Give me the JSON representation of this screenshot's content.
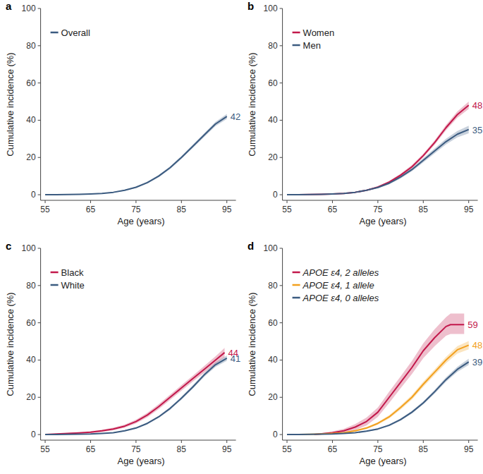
{
  "chart_data": [
    {
      "type": "line",
      "title": "a",
      "xlabel": "Age (years)",
      "ylabel": "Cumulative incidence (%)",
      "xlim": [
        54,
        97
      ],
      "ylim": [
        -3,
        100
      ],
      "xticks": [
        55,
        65,
        75,
        85,
        95
      ],
      "yticks": [
        0,
        20,
        40,
        60,
        80,
        100
      ],
      "legend": "top-left",
      "series": [
        {
          "name": "Overall",
          "color": "#3b5b80",
          "x": [
            55,
            57.5,
            60,
            62.5,
            65,
            67.5,
            70,
            72.5,
            75,
            77.5,
            80,
            82.5,
            85,
            87.5,
            90,
            92.5,
            95
          ],
          "values": [
            0,
            0,
            0.1,
            0.2,
            0.4,
            0.7,
            1.3,
            2.4,
            4,
            6.5,
            10,
            14.5,
            20,
            26,
            32,
            38,
            42
          ],
          "lower": [
            0,
            0,
            0.1,
            0.1,
            0.3,
            0.6,
            1.1,
            2.1,
            3.6,
            6,
            9.4,
            13.8,
            19.2,
            25.1,
            31,
            36.9,
            40.6
          ],
          "upper": [
            0,
            0.1,
            0.2,
            0.3,
            0.5,
            0.8,
            1.5,
            2.7,
            4.4,
            7,
            10.6,
            15.2,
            20.8,
            26.9,
            33,
            39.1,
            43.4
          ],
          "end_value": 42
        }
      ]
    },
    {
      "type": "line",
      "title": "b",
      "xlabel": "Age (years)",
      "ylabel": "Cumulative incidence (%)",
      "xlim": [
        54,
        97
      ],
      "ylim": [
        -3,
        100
      ],
      "xticks": [
        55,
        65,
        75,
        85,
        95
      ],
      "yticks": [
        0,
        20,
        40,
        60,
        80,
        100
      ],
      "legend": "top-left",
      "series": [
        {
          "name": "Women",
          "color": "#c2184b",
          "x": [
            55,
            57.5,
            60,
            62.5,
            65,
            67.5,
            70,
            72.5,
            75,
            77.5,
            80,
            82.5,
            85,
            87.5,
            90,
            92.5,
            95
          ],
          "values": [
            0,
            0,
            0.1,
            0.2,
            0.4,
            0.7,
            1.3,
            2.4,
            4.1,
            6.8,
            10.5,
            15,
            21,
            28,
            36,
            43,
            48
          ],
          "lower": [
            0,
            0,
            0.1,
            0.1,
            0.3,
            0.5,
            1.1,
            2.1,
            3.6,
            6.2,
            9.7,
            14.1,
            20,
            26.8,
            34.6,
            41.3,
            46
          ],
          "upper": [
            0,
            0.1,
            0.2,
            0.3,
            0.5,
            0.9,
            1.5,
            2.7,
            4.6,
            7.4,
            11.3,
            15.9,
            22,
            29.2,
            37.4,
            44.7,
            50
          ],
          "end_value": 48
        },
        {
          "name": "Men",
          "color": "#3b5b80",
          "x": [
            55,
            57.5,
            60,
            62.5,
            65,
            67.5,
            70,
            72.5,
            75,
            77.5,
            80,
            82.5,
            85,
            87.5,
            90,
            92.5,
            95
          ],
          "values": [
            0,
            0,
            0.1,
            0.2,
            0.4,
            0.7,
            1.3,
            2.4,
            3.9,
            6.2,
            9.5,
            13.5,
            18.5,
            23.5,
            28.5,
            32.5,
            35
          ],
          "lower": [
            0,
            0,
            0.1,
            0.1,
            0.3,
            0.5,
            1.1,
            2.1,
            3.4,
            5.6,
            8.7,
            12.6,
            17.4,
            22.2,
            27,
            30.8,
            33
          ],
          "upper": [
            0,
            0.1,
            0.2,
            0.3,
            0.5,
            0.9,
            1.5,
            2.7,
            4.4,
            6.8,
            10.3,
            14.4,
            19.6,
            24.8,
            30,
            34.2,
            37
          ],
          "end_value": 35
        }
      ]
    },
    {
      "type": "line",
      "title": "c",
      "xlabel": "Age (years)",
      "ylabel": "Cumulative incidence (%)",
      "xlim": [
        54,
        97
      ],
      "ylim": [
        -3,
        100
      ],
      "xticks": [
        55,
        65,
        75,
        85,
        95
      ],
      "yticks": [
        0,
        20,
        40,
        60,
        80,
        100
      ],
      "legend": "top-left",
      "series": [
        {
          "name": "Black",
          "color": "#c2184b",
          "x": [
            55,
            57.5,
            60,
            62.5,
            65,
            67.5,
            70,
            72.5,
            75,
            77.5,
            80,
            82.5,
            85,
            87.5,
            90,
            92.5,
            94.5
          ],
          "values": [
            0,
            0.3,
            0.6,
            0.9,
            1.3,
            2,
            3,
            4.5,
            7,
            10.5,
            15,
            20,
            25,
            30,
            35,
            40,
            44
          ],
          "lower": [
            0,
            0.1,
            0.3,
            0.5,
            0.8,
            1.4,
            2.3,
            3.7,
            6,
            9.3,
            13.7,
            18.6,
            23.5,
            28.4,
            33.2,
            38,
            41.5
          ],
          "upper": [
            0,
            0.5,
            0.9,
            1.3,
            1.8,
            2.6,
            3.7,
            5.3,
            8,
            11.7,
            16.3,
            21.4,
            26.5,
            31.6,
            36.8,
            42,
            46.5
          ],
          "end_value": 44
        },
        {
          "name": "White",
          "color": "#3b5b80",
          "x": [
            55,
            57.5,
            60,
            62.5,
            65,
            67.5,
            70,
            72.5,
            75,
            77.5,
            80,
            82.5,
            85,
            87.5,
            90,
            92.5,
            95
          ],
          "values": [
            0,
            0,
            0.1,
            0.2,
            0.3,
            0.6,
            1,
            2,
            3.5,
            6,
            9.5,
            14,
            19.5,
            25.5,
            32,
            37.5,
            41
          ],
          "lower": [
            0,
            0,
            0.1,
            0.1,
            0.2,
            0.5,
            0.8,
            1.7,
            3.1,
            5.5,
            8.9,
            13.3,
            18.7,
            24.6,
            31,
            36.3,
            39.6
          ],
          "upper": [
            0,
            0.1,
            0.2,
            0.3,
            0.4,
            0.8,
            1.2,
            2.3,
            3.9,
            6.5,
            10.1,
            14.7,
            20.3,
            26.4,
            33,
            38.7,
            42.4
          ],
          "end_value": 41
        }
      ]
    },
    {
      "type": "line",
      "title": "d",
      "xlabel": "Age (years)",
      "ylabel": "Cumulative incidence (%)",
      "xlim": [
        54,
        97
      ],
      "ylim": [
        -3,
        100
      ],
      "xticks": [
        55,
        65,
        75,
        85,
        95
      ],
      "yticks": [
        0,
        20,
        40,
        60,
        80,
        100
      ],
      "legend": "top-left",
      "series": [
        {
          "name": "APOE ε4, 2 alleles",
          "color": "#c2184b",
          "x": [
            61,
            65,
            67.5,
            70,
            72.5,
            75,
            77.5,
            80,
            82.5,
            85,
            87.5,
            90,
            91,
            94
          ],
          "values": [
            0,
            1,
            2,
            4,
            7,
            12,
            20,
            28,
            36,
            45,
            52,
            58,
            59,
            59
          ],
          "lower": [
            0,
            0.3,
            0.9,
            2.4,
            4.9,
            9.5,
            17,
            24.8,
            32.5,
            41,
            47.5,
            53,
            54,
            54
          ],
          "upper": [
            0,
            1.7,
            3.1,
            5.6,
            9.1,
            14.5,
            23,
            31.2,
            39.5,
            49,
            56.5,
            63,
            65,
            65
          ],
          "end_value": 59
        },
        {
          "name": "APOE ε4, 1 allele",
          "color": "#f2a01e",
          "x": [
            55,
            57.5,
            60,
            62.5,
            65,
            67.5,
            70,
            72.5,
            75,
            77.5,
            80,
            82.5,
            85,
            87.5,
            90,
            92.5,
            95
          ],
          "values": [
            0,
            0,
            0.1,
            0.3,
            0.6,
            1,
            2,
            3.5,
            6,
            9.5,
            14.5,
            20,
            27,
            33.5,
            40,
            45.5,
            48
          ],
          "lower": [
            0,
            0,
            0,
            0.1,
            0.4,
            0.7,
            1.6,
            3,
            5.3,
            8.6,
            13.4,
            18.8,
            25.6,
            32,
            38.3,
            43.5,
            45.8
          ],
          "upper": [
            0,
            0.1,
            0.2,
            0.5,
            0.8,
            1.3,
            2.4,
            4,
            6.7,
            10.4,
            15.6,
            21.2,
            28.4,
            35,
            41.7,
            47.5,
            50.2
          ],
          "end_value": 48
        },
        {
          "name": "APOE ε4, 0 alleles",
          "color": "#3b5b80",
          "x": [
            55,
            57.5,
            60,
            62.5,
            65,
            67.5,
            70,
            72.5,
            75,
            77.5,
            80,
            82.5,
            85,
            87.5,
            90,
            92.5,
            95
          ],
          "values": [
            0,
            0,
            0.1,
            0.2,
            0.3,
            0.6,
            1,
            1.8,
            3,
            5,
            8,
            12,
            17,
            23,
            29.5,
            35,
            39
          ],
          "lower": [
            0,
            0,
            0,
            0.1,
            0.2,
            0.4,
            0.8,
            1.5,
            2.6,
            4.5,
            7.4,
            11.3,
            16.2,
            22,
            28.3,
            33.6,
            37.3
          ],
          "upper": [
            0,
            0.1,
            0.2,
            0.3,
            0.4,
            0.8,
            1.2,
            2.1,
            3.4,
            5.5,
            8.6,
            12.7,
            17.8,
            24,
            30.7,
            36.4,
            40.7
          ],
          "end_value": 39
        }
      ]
    }
  ]
}
